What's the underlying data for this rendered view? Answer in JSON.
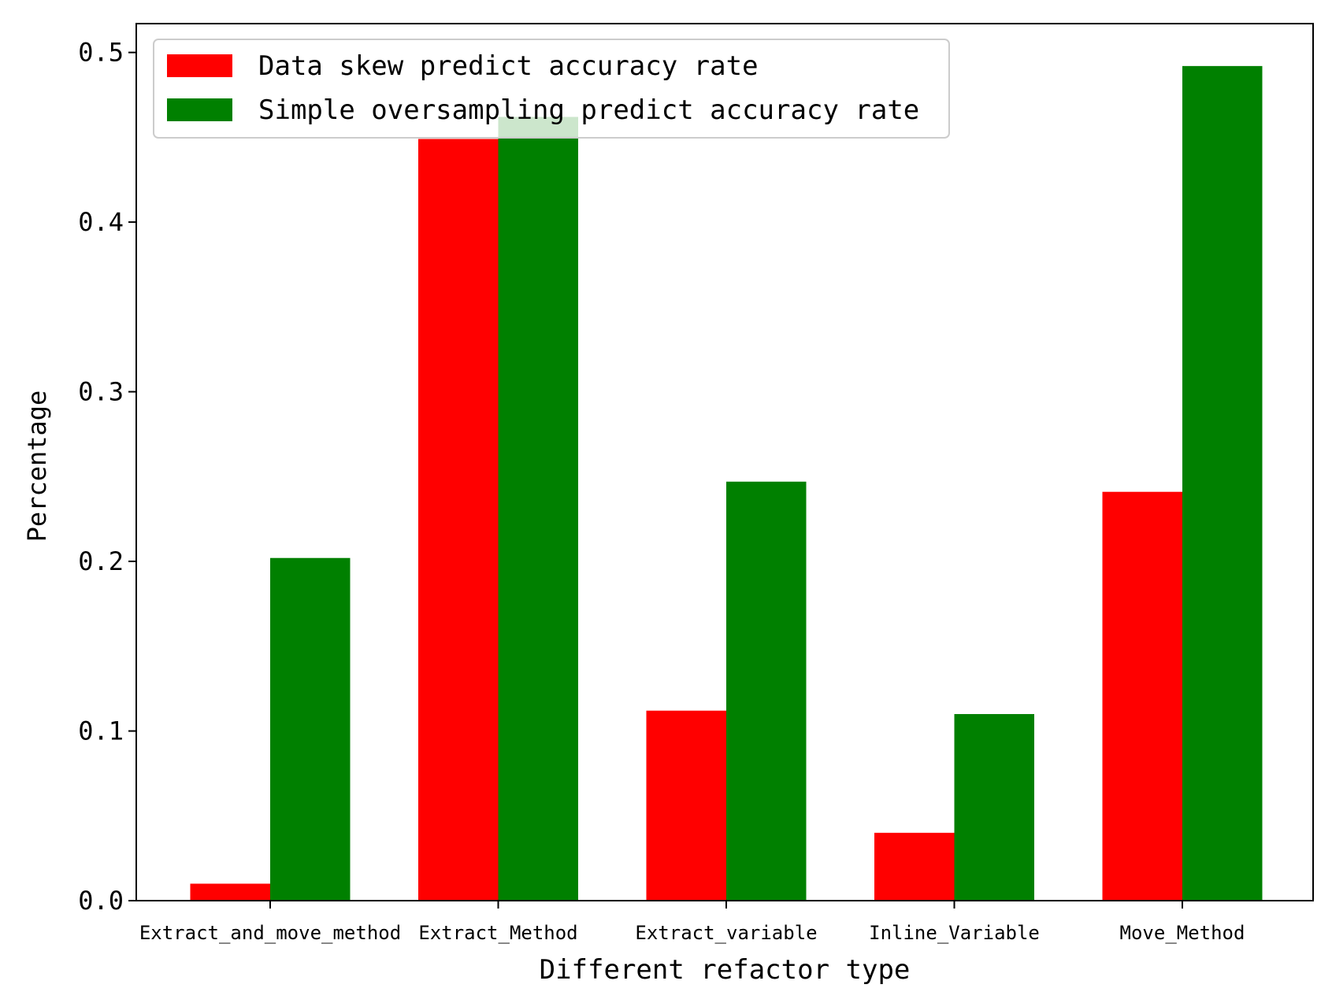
{
  "chart_data": {
    "type": "bar",
    "title": "",
    "xlabel": "Different refactor type",
    "ylabel": "Percentage",
    "categories": [
      "Extract_and_move_method",
      "Extract_Method",
      "Extract_variable",
      "Inline_Variable",
      "Move_Method"
    ],
    "series": [
      {
        "name": "Data skew predict accuracy rate",
        "color": "#ff0000",
        "values": [
          0.01,
          0.449,
          0.112,
          0.04,
          0.241
        ]
      },
      {
        "name": "Simple oversampling predict accuracy rate",
        "color": "#008000",
        "values": [
          0.202,
          0.462,
          0.247,
          0.11,
          0.492
        ]
      }
    ],
    "ylim": [
      0,
      0.517
    ],
    "yticks": [
      0.0,
      0.1,
      0.2,
      0.3,
      0.4,
      0.5
    ],
    "ytick_labels": [
      "0.0",
      "0.1",
      "0.2",
      "0.3",
      "0.4",
      "0.5"
    ],
    "grid": false,
    "legend_position": "top-left"
  }
}
